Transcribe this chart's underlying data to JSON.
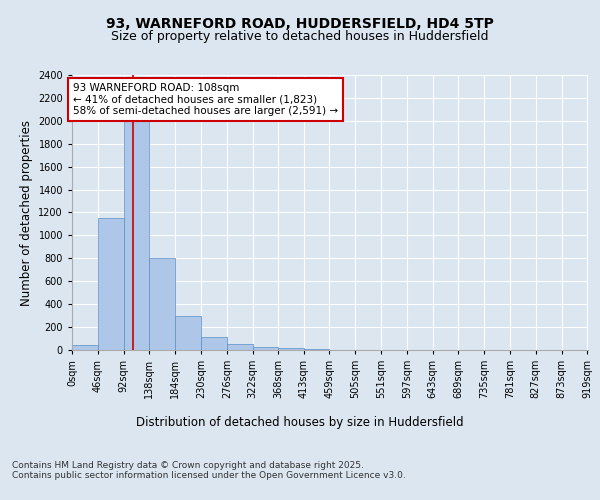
{
  "title": "93, WARNEFORD ROAD, HUDDERSFIELD, HD4 5TP",
  "subtitle": "Size of property relative to detached houses in Huddersfield",
  "xlabel": "Distribution of detached houses by size in Huddersfield",
  "ylabel": "Number of detached properties",
  "bin_labels": [
    "0sqm",
    "46sqm",
    "92sqm",
    "138sqm",
    "184sqm",
    "230sqm",
    "276sqm",
    "322sqm",
    "368sqm",
    "413sqm",
    "459sqm",
    "505sqm",
    "551sqm",
    "597sqm",
    "643sqm",
    "689sqm",
    "735sqm",
    "781sqm",
    "827sqm",
    "873sqm",
    "919sqm"
  ],
  "bin_edges": [
    0,
    46,
    92,
    138,
    184,
    230,
    276,
    322,
    368,
    413,
    459,
    505,
    551,
    597,
    643,
    689,
    735,
    781,
    827,
    873,
    919
  ],
  "bar_heights": [
    40,
    1150,
    2000,
    800,
    300,
    110,
    50,
    30,
    15,
    5,
    2,
    1,
    0,
    0,
    0,
    0,
    0,
    0,
    0,
    0
  ],
  "bar_color": "#aec6e8",
  "bar_edge_color": "#5a8fc4",
  "property_size": 108,
  "vline_color": "#cc0000",
  "annotation_line1": "93 WARNEFORD ROAD: 108sqm",
  "annotation_line2": "← 41% of detached houses are smaller (1,823)",
  "annotation_line3": "58% of semi-detached houses are larger (2,591) →",
  "annotation_box_color": "#cc0000",
  "ylim": [
    0,
    2400
  ],
  "yticks": [
    0,
    200,
    400,
    600,
    800,
    1000,
    1200,
    1400,
    1600,
    1800,
    2000,
    2200,
    2400
  ],
  "bg_color": "#dce6f1",
  "plot_bg_color": "#dce6f1",
  "footer_line1": "Contains HM Land Registry data © Crown copyright and database right 2025.",
  "footer_line2": "Contains public sector information licensed under the Open Government Licence v3.0.",
  "title_fontsize": 10,
  "subtitle_fontsize": 9,
  "axis_label_fontsize": 8.5,
  "tick_fontsize": 7,
  "annotation_fontsize": 7.5,
  "footer_fontsize": 6.5
}
